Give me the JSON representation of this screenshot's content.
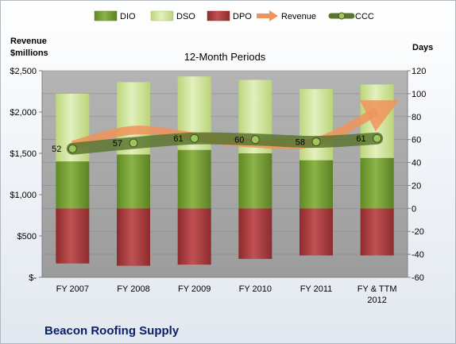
{
  "chart_data": {
    "type": "bar",
    "title": "12-Month Periods",
    "footer_title": "Beacon Roofing Supply",
    "ylabel_left": "Revenue\n$millions",
    "ylabel_right": "Days",
    "categories": [
      "FY 2007",
      "FY 2008",
      "FY 2009",
      "FY 2010",
      "FY 2011",
      "FY & TTM\n2012"
    ],
    "left_axis": {
      "min": 0,
      "max": 2500,
      "step": 500,
      "tick_labels": [
        "$-",
        "$500",
        "$1,000",
        "$1,500",
        "$2,000",
        "$2,500"
      ]
    },
    "right_axis": {
      "min": -60,
      "max": 120,
      "step": 20,
      "tick_labels": [
        "-60",
        "-40",
        "-20",
        "0",
        "20",
        "40",
        "60",
        "80",
        "100",
        "120"
      ]
    },
    "series": [
      {
        "name": "DIO",
        "axis": "right",
        "values": [
          41,
          47,
          51,
          48,
          42,
          44
        ]
      },
      {
        "name": "DSO",
        "axis": "right",
        "values": [
          59,
          63,
          64,
          64,
          62,
          64
        ]
      },
      {
        "name": "DPO",
        "axis": "right",
        "values": [
          48,
          50,
          49,
          44,
          41,
          41
        ]
      },
      {
        "name": "Revenue",
        "axis": "left",
        "type": "line",
        "values": [
          1600,
          1780,
          1700,
          1620,
          1640,
          2010
        ]
      },
      {
        "name": "CCC",
        "axis": "right",
        "type": "line",
        "values": [
          52,
          57,
          61,
          60,
          58,
          61
        ]
      }
    ],
    "ccc_labels": [
      "52",
      "57",
      "61",
      "60",
      "58",
      "61"
    ],
    "colors": {
      "DIO": "#7fa33a",
      "DSO": "#d7e9a3",
      "DPO": "#b04446",
      "Revenue": "#f0935a",
      "CCC": "#5c7530",
      "plot_bg": "#a9a9a9"
    },
    "legend_position": "top",
    "grid": true
  }
}
